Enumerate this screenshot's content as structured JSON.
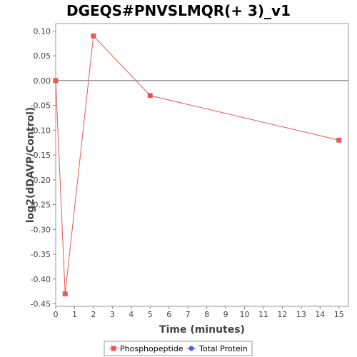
{
  "chart_data": {
    "type": "line",
    "title": "DGEQS#PNVSLMQR(+ 3)_v1",
    "xlabel": "Time (minutes)",
    "ylabel": "log2(dDAVP/Control)",
    "xlim": [
      0,
      15.5
    ],
    "ylim": [
      -0.455,
      0.115
    ],
    "xticks": [
      0,
      1,
      2,
      3,
      4,
      5,
      6,
      7,
      8,
      9,
      10,
      11,
      12,
      13,
      14,
      15
    ],
    "yticks": [
      0.1,
      0.05,
      0.0,
      -0.05,
      -0.1,
      -0.15,
      -0.2,
      -0.25,
      -0.3,
      -0.35,
      -0.4,
      -0.45
    ],
    "ytick_labels": [
      "0.10",
      "0.05",
      "0.00",
      "-0.05",
      "-0.10",
      "-0.15",
      "-0.20",
      "-0.25",
      "-0.30",
      "-0.35",
      "-0.40",
      "-0.45"
    ],
    "grid": false,
    "legend_position": "bottom",
    "series": [
      {
        "name": "Phosphopeptide",
        "color": "#e8585a",
        "marker": "square",
        "x": [
          0,
          0.5,
          2,
          5,
          15
        ],
        "y": [
          0.0,
          -0.43,
          0.09,
          -0.03,
          -0.12
        ]
      },
      {
        "name": "Total Protein",
        "color": "#5a5ae8",
        "marker": "circle",
        "x": [],
        "y": []
      }
    ]
  }
}
